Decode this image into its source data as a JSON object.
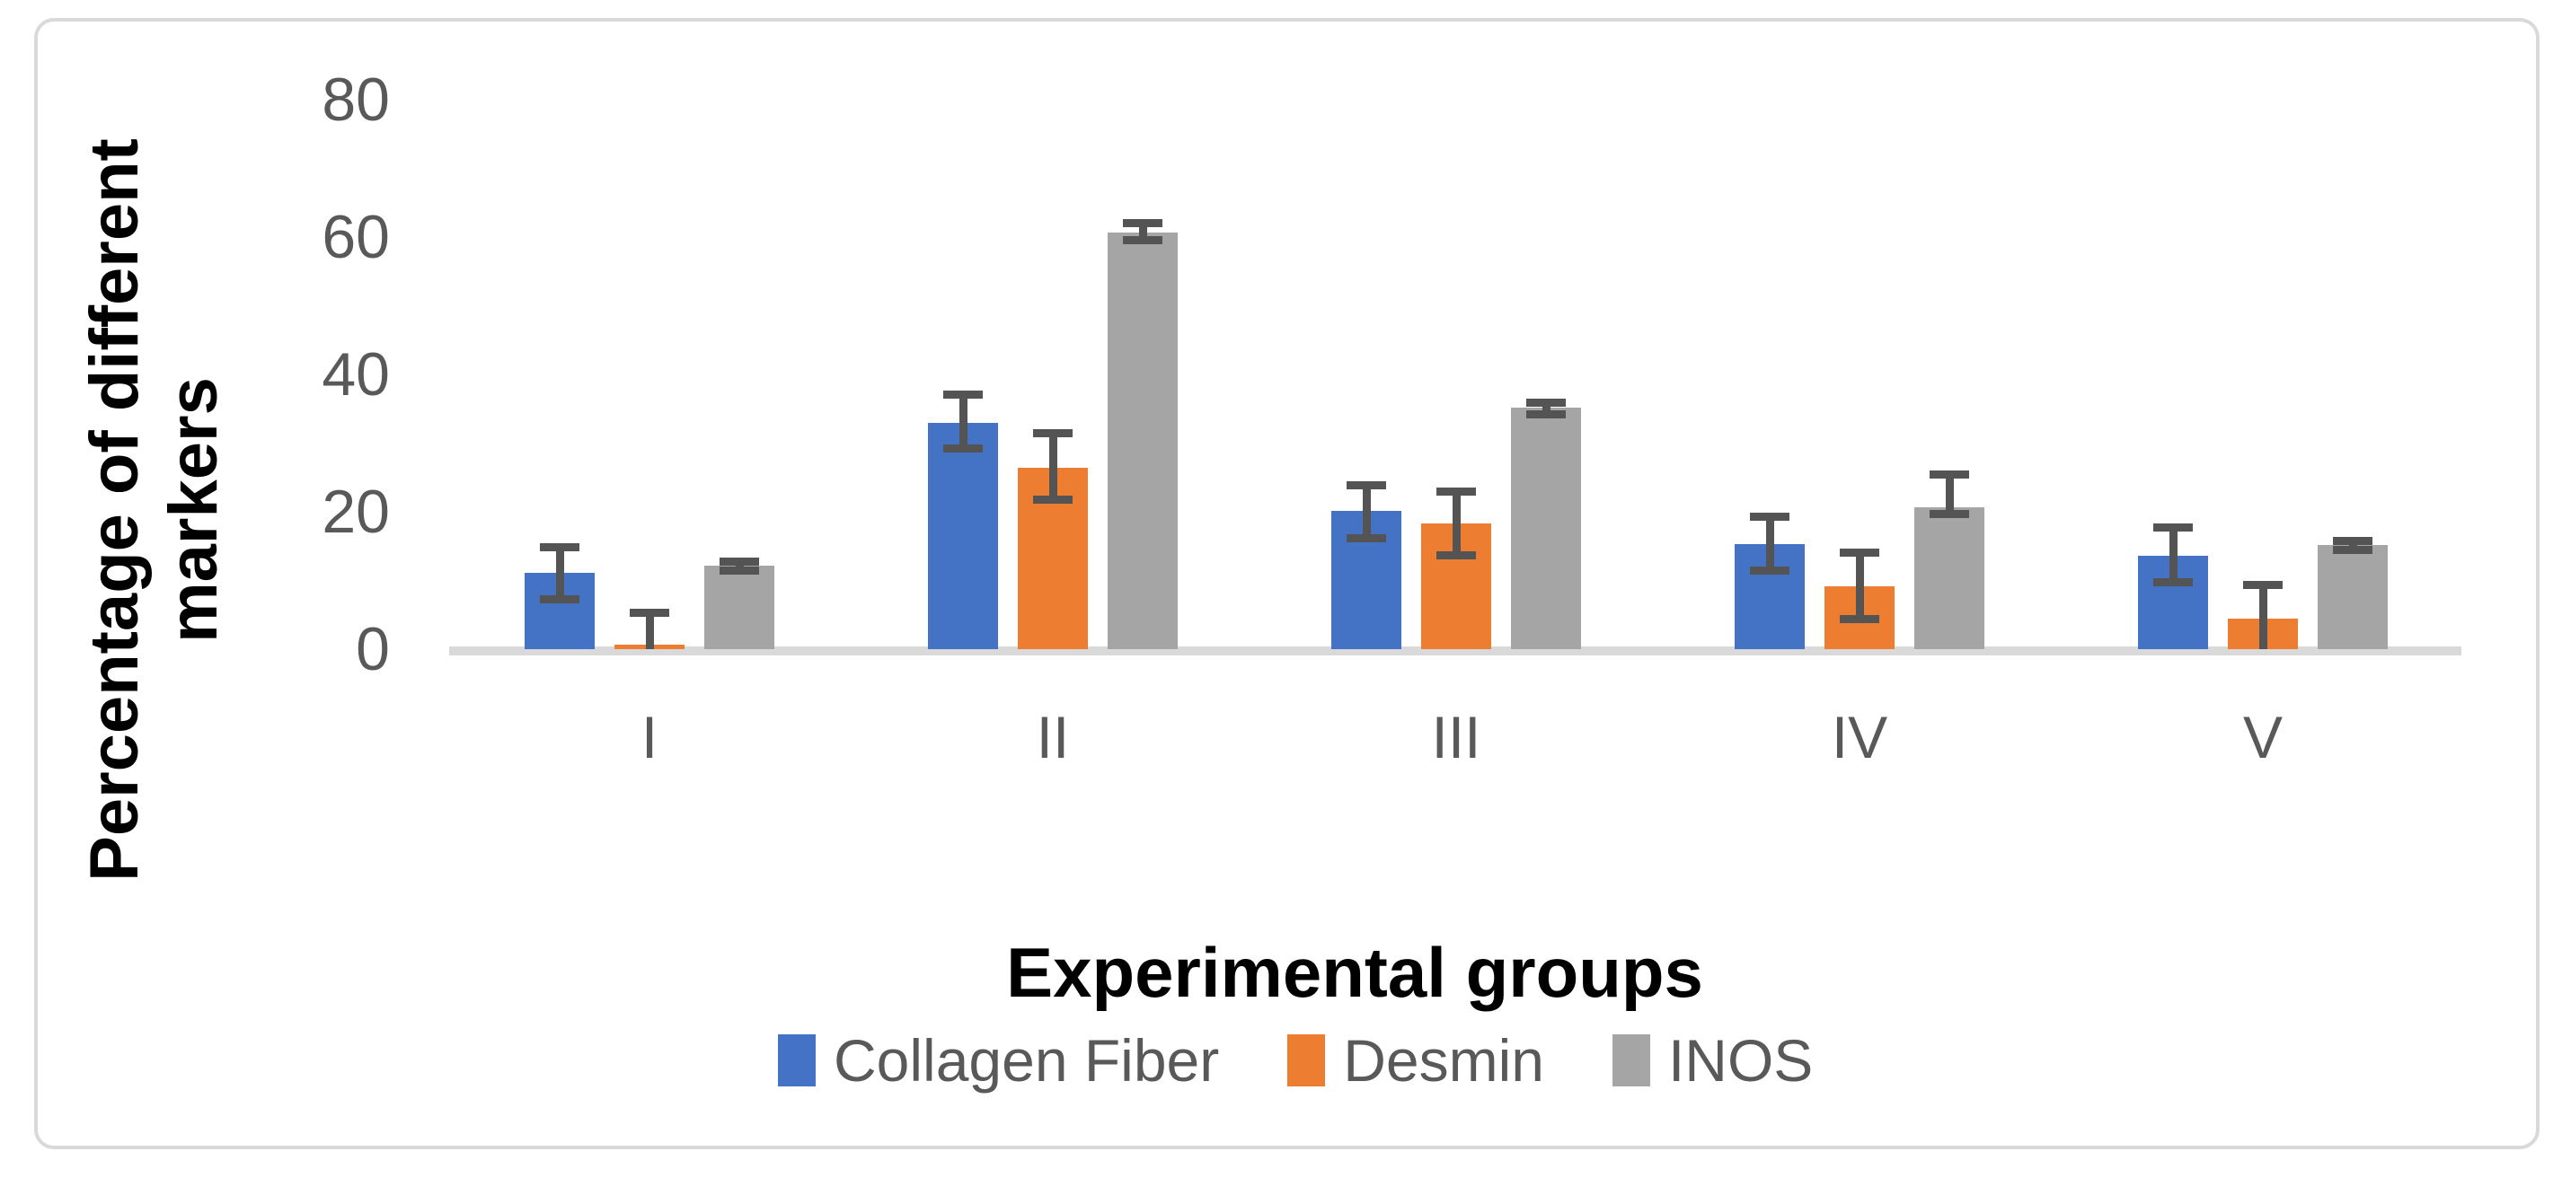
{
  "chart_data": {
    "type": "bar",
    "title": "",
    "xlabel": "Experimental groups",
    "ylabel": "Percentage of different markers",
    "ylabel_lines": [
      "Percentage of different",
      "markers"
    ],
    "categories": [
      "I",
      "II",
      "III",
      "IV",
      "V"
    ],
    "yticks": [
      0,
      20,
      40,
      60,
      80
    ],
    "ylim": [
      0,
      80
    ],
    "grid": false,
    "legend_position": "bottom",
    "series": [
      {
        "name": "Collagen Fiber",
        "color": "#4472C4",
        "values": [
          11.1,
          32.9,
          20.1,
          15.3,
          13.6
        ],
        "err_top": [
          14.9,
          37.0,
          23.9,
          19.3,
          17.7
        ],
        "err_bottom": [
          7.2,
          29.2,
          16.2,
          11.4,
          9.8
        ]
      },
      {
        "name": "Desmin",
        "color": "#ED7D31",
        "values": [
          0.7,
          26.4,
          18.3,
          9.2,
          4.5
        ],
        "err_top": [
          5.3,
          31.4,
          23.0,
          14.0,
          9.3
        ],
        "err_bottom": [
          null,
          21.8,
          13.6,
          4.4,
          null
        ]
      },
      {
        "name": "INOS",
        "color": "#A5A5A5",
        "values": [
          12.1,
          60.7,
          35.2,
          20.7,
          15.2
        ],
        "err_top": [
          12.7,
          62.0,
          35.9,
          25.4,
          15.8
        ],
        "err_bottom": [
          11.5,
          59.5,
          34.2,
          19.7,
          14.5
        ]
      }
    ],
    "colors": {
      "axis_line": "#D9D9D9",
      "error_bar": "#545454",
      "tick_text": "#595959",
      "title_text": "#000000",
      "frame_border": "#D9D9D9"
    }
  }
}
